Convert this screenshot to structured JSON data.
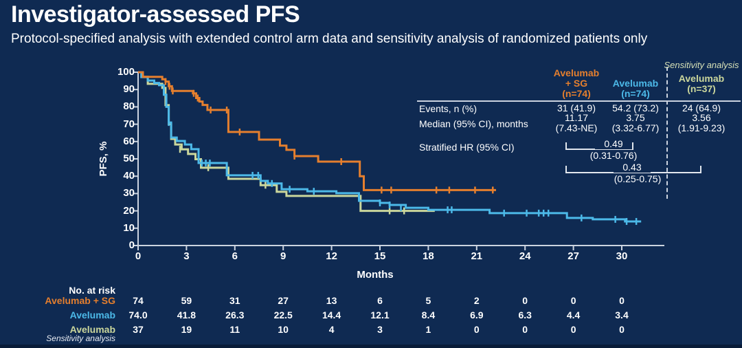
{
  "slide": {
    "title": "Investigator-assessed PFS",
    "subtitle": "Protocol-specified analysis with extended control arm data and sensitivity analysis of randomized patients only"
  },
  "chart_data": {
    "type": "line",
    "variant": "kaplan-meier-step",
    "xlabel": "Months",
    "ylabel": "PFS, %",
    "xlim": [
      0,
      32.6
    ],
    "ylim": [
      0,
      100
    ],
    "xticks": [
      0,
      3,
      6,
      9,
      12,
      15,
      18,
      21,
      24,
      27,
      30
    ],
    "yticks": [
      0,
      10,
      20,
      30,
      40,
      50,
      60,
      70,
      80,
      90,
      100
    ],
    "grid": false,
    "legend": "none",
    "series": [
      {
        "name": "Avelumab (sensitivity analysis)",
        "n": 37,
        "color": "#cbd79c",
        "points": [
          [
            0,
            100
          ],
          [
            0.3,
            97.3
          ],
          [
            0.6,
            93.3
          ],
          [
            1.5,
            91.0
          ],
          [
            1.7,
            81.0
          ],
          [
            1.9,
            70.0
          ],
          [
            2.05,
            61.5
          ],
          [
            2.3,
            58.3
          ],
          [
            2.7,
            55.5
          ],
          [
            3.1,
            52.8
          ],
          [
            3.56,
            49.8
          ],
          [
            3.9,
            44.9
          ],
          [
            5.6,
            38.5
          ],
          [
            7.6,
            34.8
          ],
          [
            8.6,
            31.0
          ],
          [
            9.2,
            28.6
          ],
          [
            13.8,
            20.0
          ]
        ],
        "end_month": 18.4,
        "censor_ticks": [
          [
            2.6,
            55.5
          ],
          [
            4.35,
            44.9
          ],
          [
            7.9,
            34.8
          ],
          [
            15.6,
            20.0
          ],
          [
            16.5,
            20.0
          ]
        ]
      },
      {
        "name": "Avelumab",
        "n": 74,
        "color": "#4cb9e8",
        "points": [
          [
            0,
            100
          ],
          [
            0.2,
            97.2
          ],
          [
            0.6,
            95.2
          ],
          [
            1.0,
            93.8
          ],
          [
            1.3,
            92.5
          ],
          [
            1.6,
            87.0
          ],
          [
            1.75,
            80.0
          ],
          [
            1.9,
            71.0
          ],
          [
            2.05,
            62.3
          ],
          [
            2.4,
            60.3
          ],
          [
            2.9,
            58.3
          ],
          [
            3.3,
            55.6
          ],
          [
            3.75,
            47.6
          ],
          [
            5.5,
            40.5
          ],
          [
            7.6,
            37.3
          ],
          [
            8.05,
            35.8
          ],
          [
            8.9,
            32.5
          ],
          [
            10.5,
            31.3
          ],
          [
            12.3,
            30.2
          ],
          [
            13.7,
            25.8
          ],
          [
            15.0,
            24.6
          ],
          [
            15.6,
            23.4
          ],
          [
            16.6,
            21.8
          ],
          [
            18.0,
            20.6
          ],
          [
            21.8,
            18.7
          ],
          [
            26.6,
            15.9
          ],
          [
            28.2,
            15.1
          ],
          [
            30.2,
            13.9
          ]
        ],
        "end_month": 31.2,
        "censor_ticks": [
          [
            1.9,
            71.0
          ],
          [
            3.95,
            47.6
          ],
          [
            4.2,
            47.6
          ],
          [
            4.45,
            47.6
          ],
          [
            7.1,
            40.5
          ],
          [
            7.45,
            40.5
          ],
          [
            8.3,
            35.8
          ],
          [
            9.4,
            32.5
          ],
          [
            10.9,
            31.3
          ],
          [
            15.0,
            24.6
          ],
          [
            15.6,
            23.4
          ],
          [
            16.3,
            21.8
          ],
          [
            19.2,
            20.6
          ],
          [
            19.45,
            20.6
          ],
          [
            22.7,
            18.7
          ],
          [
            24.1,
            18.7
          ],
          [
            24.85,
            18.7
          ],
          [
            25.15,
            18.7
          ],
          [
            25.45,
            18.7
          ],
          [
            27.5,
            15.9
          ],
          [
            29.6,
            15.1
          ],
          [
            30.3,
            13.9
          ],
          [
            30.9,
            13.9
          ]
        ]
      },
      {
        "name": "Avelumab + SG",
        "n": 74,
        "color": "#e57f2e",
        "points": [
          [
            0,
            100
          ],
          [
            0.3,
            97.3
          ],
          [
            1.5,
            95.9
          ],
          [
            1.7,
            94.6
          ],
          [
            1.9,
            91.9
          ],
          [
            2.1,
            89.2
          ],
          [
            3.4,
            87.8
          ],
          [
            3.6,
            85.1
          ],
          [
            3.8,
            83.1
          ],
          [
            4.0,
            81.1
          ],
          [
            4.3,
            78.2
          ],
          [
            5.6,
            65.5
          ],
          [
            7.5,
            61.1
          ],
          [
            8.8,
            57.6
          ],
          [
            9.2,
            55.2
          ],
          [
            9.7,
            51.6
          ],
          [
            11.17,
            48.4
          ],
          [
            13.75,
            40.0
          ],
          [
            14.0,
            32.0
          ]
        ],
        "end_month": 22.2,
        "censor_ticks": [
          [
            1.7,
            94.6
          ],
          [
            1.95,
            91.9
          ],
          [
            2.15,
            89.2
          ],
          [
            3.45,
            87.8
          ],
          [
            3.7,
            85.1
          ],
          [
            4.5,
            78.2
          ],
          [
            5.5,
            78.2
          ],
          [
            6.3,
            65.5
          ],
          [
            9.7,
            51.6
          ],
          [
            12.6,
            48.4
          ],
          [
            15.1,
            32.0
          ],
          [
            15.7,
            32.0
          ],
          [
            18.5,
            32.0
          ],
          [
            19.3,
            32.0
          ],
          [
            20.9,
            32.0
          ],
          [
            22.0,
            32.0
          ]
        ]
      }
    ]
  },
  "summary_table": {
    "sensitivity_note": "Sensitivity analysis",
    "columns": [
      {
        "header": "Avelumab\n+ SG\n(n=74)",
        "color": "#e57f2e"
      },
      {
        "header": "Avelumab\n(n=74)",
        "color": "#4cb9e8"
      },
      {
        "header": "Avelumab\n(n=37)",
        "color": "#cbd79c"
      }
    ],
    "rows": [
      {
        "label": "Events, n (%)",
        "values": [
          "31 (41.9)",
          "54.2 (73.2)",
          "24 (64.9)"
        ]
      },
      {
        "label": "Median (95% CI), months",
        "values": [
          "11.17\n(7.43-NE)",
          "3.75\n(3.32-6.77)",
          "3.56\n(1.91-9.23)"
        ]
      },
      {
        "label": "Stratified HR (95% CI)",
        "values": [
          "",
          "",
          ""
        ]
      }
    ],
    "hr_brackets": [
      {
        "value": "0.49",
        "ci": "(0.31-0.76)"
      },
      {
        "value": "0.43",
        "ci": "(0.25-0.75)"
      }
    ]
  },
  "risk_table": {
    "title": "No. at risk",
    "months": [
      0,
      3,
      6,
      9,
      12,
      15,
      18,
      21,
      24,
      27,
      30
    ],
    "rows": [
      {
        "label": "Avelumab + SG",
        "sublabel": "",
        "color": "#e57f2e",
        "values": [
          "74",
          "59",
          "31",
          "27",
          "13",
          "6",
          "5",
          "2",
          "0",
          "0",
          "0"
        ]
      },
      {
        "label": "Avelumab",
        "sublabel": "",
        "color": "#4cb9e8",
        "values": [
          "74.0",
          "41.8",
          "26.3",
          "22.5",
          "14.4",
          "12.1",
          "8.4",
          "6.9",
          "6.3",
          "4.4",
          "3.4"
        ]
      },
      {
        "label": "Avelumab",
        "sublabel": "Sensitivity analysis",
        "color": "#cbd79c",
        "values": [
          "37",
          "19",
          "11",
          "10",
          "4",
          "3",
          "1",
          "0",
          "0",
          "0",
          "0"
        ]
      }
    ]
  },
  "colors": {
    "background": "#0f2a52",
    "axis": "#ccd4e0",
    "text": "#ffffff",
    "avelumab_sg": "#e57f2e",
    "avelumab": "#4cb9e8",
    "avelumab_sensitivity": "#cbd79c"
  }
}
